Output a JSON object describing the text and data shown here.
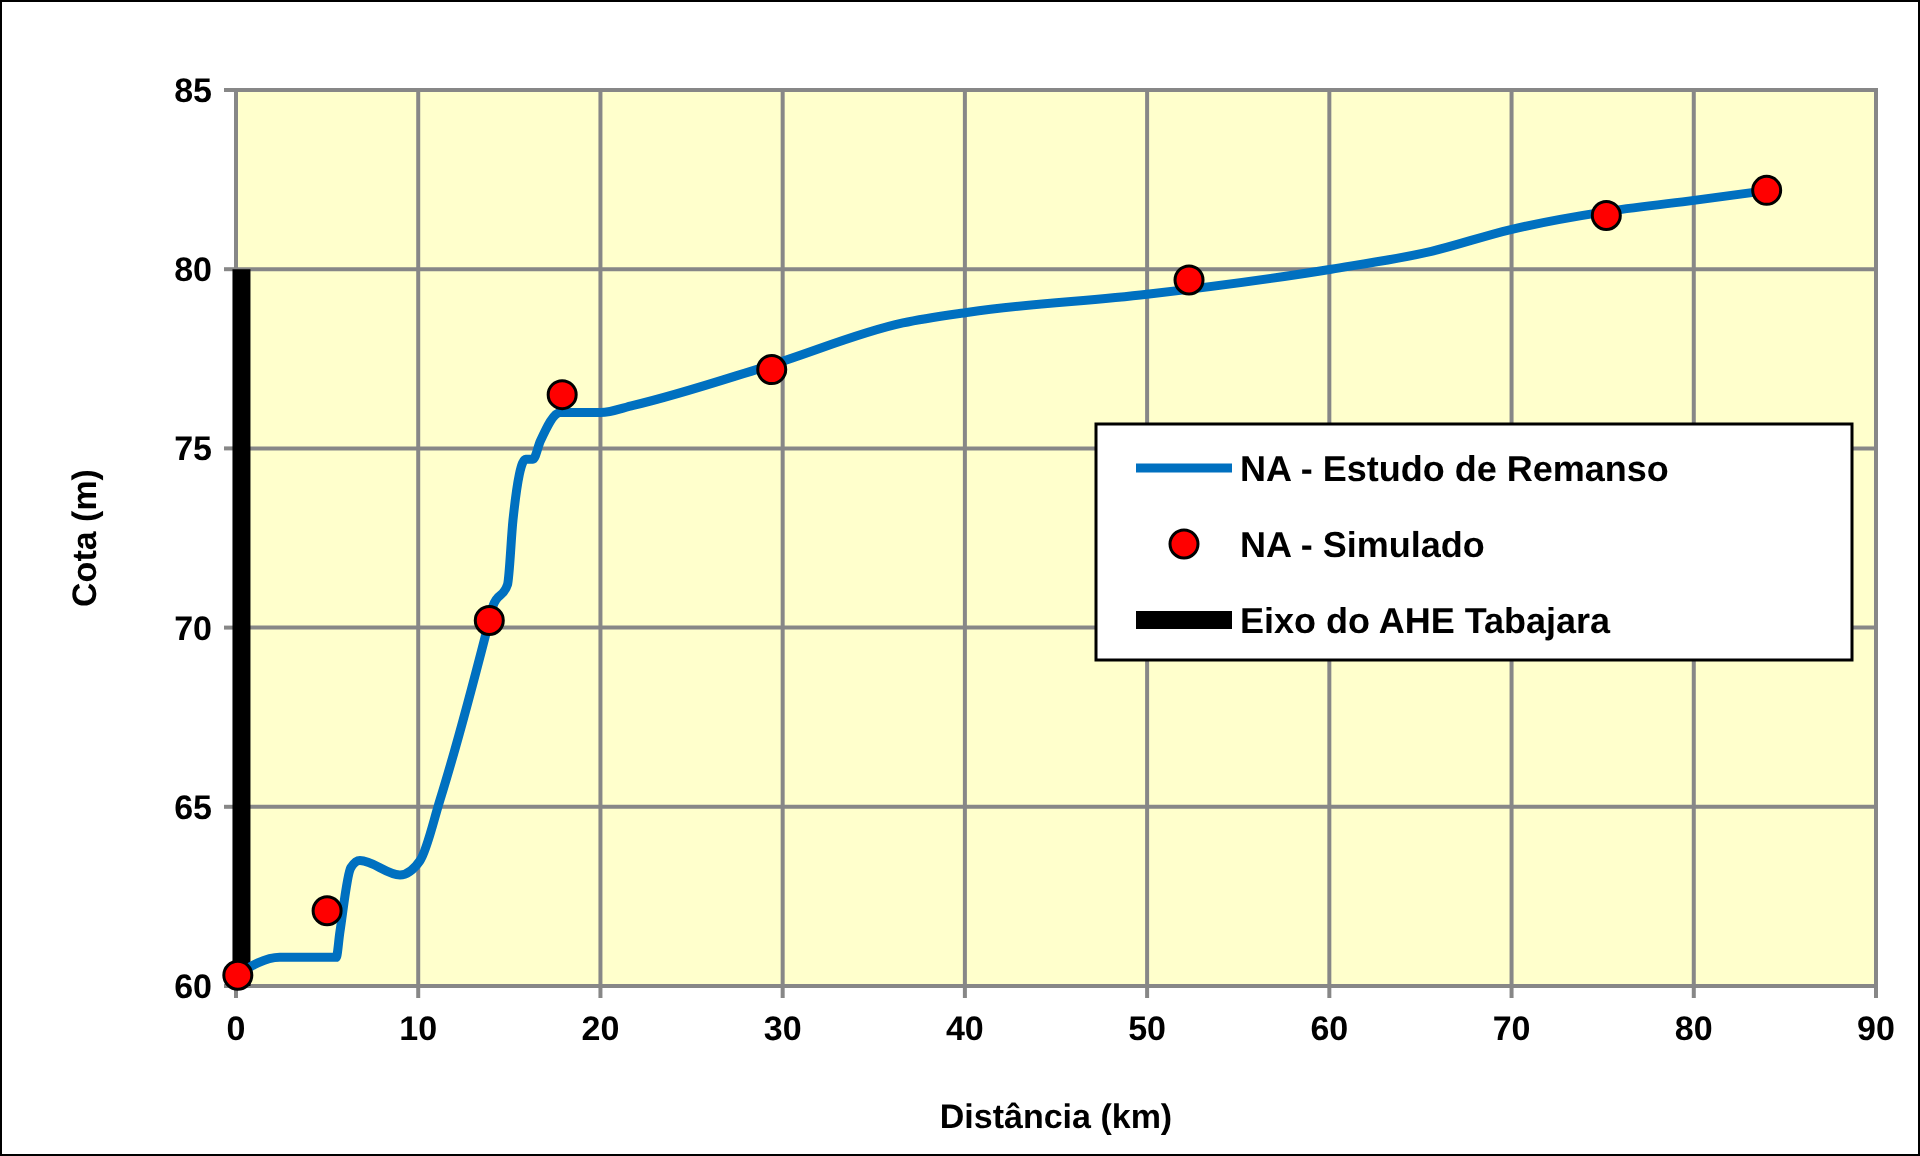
{
  "chart_data": {
    "type": "line",
    "xlabel": "Distância (km)",
    "ylabel": "Cota (m)",
    "xlim": [
      0,
      90
    ],
    "ylim": [
      60,
      85
    ],
    "xticks": [
      0,
      10,
      20,
      30,
      40,
      50,
      60,
      70,
      80,
      90
    ],
    "yticks": [
      60,
      65,
      70,
      75,
      80,
      85
    ],
    "grid": true,
    "legend": "right",
    "series": [
      {
        "name": "NA - Estudo de Remanso",
        "color": "#0070c0",
        "marker": "none",
        "x": [
          0,
          2.4,
          5.5,
          5.7,
          6.3,
          6.8,
          9,
          10.1,
          11.2,
          13.7,
          14.1,
          14.9,
          15.2,
          15.9,
          16.3,
          16.7,
          17.8,
          20,
          21.8,
          29.2,
          36.6,
          40.2,
          50,
          60.1,
          65.6,
          69.9,
          75.1,
          79.7,
          84.1
        ],
        "values": [
          60.3,
          60.8,
          60.8,
          61.5,
          63.3,
          63.5,
          63.1,
          63.5,
          65.2,
          69.8,
          70.6,
          71.2,
          73,
          74.7,
          74.7,
          75.2,
          76,
          76,
          76.2,
          77.3,
          78.5,
          78.8,
          79.3,
          80,
          80.5,
          81.1,
          81.6,
          81.9,
          82.2
        ]
      },
      {
        "name": "NA - Simulado",
        "type": "scatter",
        "color": "#ff0000",
        "marker": "circle",
        "x": [
          0.1,
          5,
          13.9,
          17.9,
          29.4,
          52.3,
          75.2,
          84
        ],
        "values": [
          60.3,
          62.1,
          70.2,
          76.5,
          77.2,
          79.7,
          81.5,
          82.2
        ]
      },
      {
        "name": "Eixo do AHE Tabajara",
        "type": "line",
        "color": "#000000",
        "marker": "none",
        "x": [
          0.3,
          0.3
        ],
        "values": [
          60,
          80
        ]
      }
    ]
  }
}
